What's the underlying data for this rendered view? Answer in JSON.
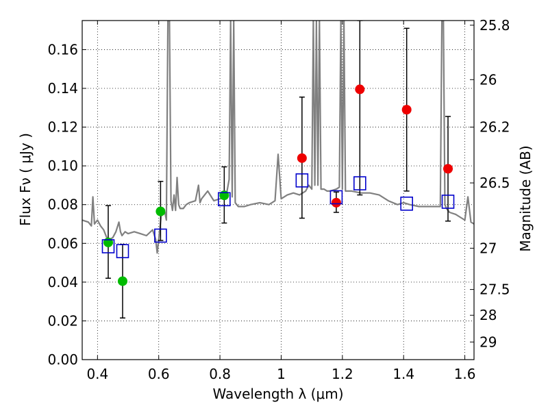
{
  "chart_data": {
    "type": "scatter",
    "xlabel": "Wavelength  λ (μm)",
    "ylabel": "Flux  Fν  ( μJy )",
    "ylabel_right": "Magnitude (AB)",
    "xlim": [
      0.35,
      1.63
    ],
    "ylim": [
      0.0,
      0.175
    ],
    "x_ticks": [
      0.4,
      0.6,
      0.8,
      1.0,
      1.2,
      1.4,
      1.6
    ],
    "x_tick_labels": [
      "0.4",
      "0.6",
      "0.8",
      "1",
      "1.2",
      "1.4",
      "1.6"
    ],
    "y_ticks": [
      0.0,
      0.02,
      0.04,
      0.06,
      0.08,
      0.1,
      0.12,
      0.14,
      0.16
    ],
    "y_tick_labels": [
      "0.00",
      "0.02",
      "0.04",
      "0.06",
      "0.08",
      "0.10",
      "0.12",
      "0.14",
      "0.16"
    ],
    "right_ticks": [
      {
        "label": "25.8",
        "flux": 0.1726
      },
      {
        "label": "26",
        "flux": 0.1445
      },
      {
        "label": "26.2",
        "flux": 0.12
      },
      {
        "label": "26.5",
        "flux": 0.0912
      },
      {
        "label": "27",
        "flux": 0.0575
      },
      {
        "label": "27.5",
        "flux": 0.0362
      },
      {
        "label": "28",
        "flux": 0.0229
      },
      {
        "label": "29",
        "flux": 0.0091
      }
    ],
    "grid": true,
    "colors": {
      "green": "#00bb00",
      "red": "#ee0000",
      "blue_square": "#0000cc",
      "spectrum": "#808080",
      "errorbar": "#000000"
    },
    "series": [
      {
        "marker": "circle",
        "color": "#00bb00",
        "points": [
          {
            "x": 0.435,
            "y": 0.0605
          },
          {
            "x": 0.482,
            "y": 0.0405
          },
          {
            "x": 0.606,
            "y": 0.0765
          },
          {
            "x": 0.814,
            "y": 0.0848
          }
        ]
      },
      {
        "marker": "circle",
        "color": "#ee0000",
        "points": [
          {
            "x": 1.068,
            "y": 0.104
          },
          {
            "x": 1.18,
            "y": 0.081
          },
          {
            "x": 1.257,
            "y": 0.1395
          },
          {
            "x": 1.41,
            "y": 0.129
          },
          {
            "x": 1.545,
            "y": 0.0985
          }
        ]
      },
      {
        "marker": "square-open",
        "color": "#0000cc",
        "points": [
          {
            "x": 0.435,
            "y": 0.0585
          },
          {
            "x": 0.482,
            "y": 0.056
          },
          {
            "x": 0.606,
            "y": 0.064
          },
          {
            "x": 0.814,
            "y": 0.0828
          },
          {
            "x": 1.068,
            "y": 0.0925
          },
          {
            "x": 1.18,
            "y": 0.0838
          },
          {
            "x": 1.257,
            "y": 0.091
          },
          {
            "x": 1.41,
            "y": 0.0805
          },
          {
            "x": 1.545,
            "y": 0.0815
          }
        ]
      }
    ],
    "errorbars": [
      {
        "x": 0.435,
        "lo": 0.042,
        "hi": 0.0795
      },
      {
        "x": 0.482,
        "lo": 0.0215,
        "hi": 0.0595
      },
      {
        "x": 0.606,
        "lo": 0.0615,
        "hi": 0.092
      },
      {
        "x": 0.814,
        "lo": 0.0705,
        "hi": 0.0995
      },
      {
        "x": 1.068,
        "lo": 0.073,
        "hi": 0.1355
      },
      {
        "x": 1.18,
        "lo": 0.076,
        "hi": 0.0865
      },
      {
        "x": 1.257,
        "lo": 0.085,
        "hi": 0.175
      },
      {
        "x": 1.41,
        "lo": 0.087,
        "hi": 0.171
      },
      {
        "x": 1.545,
        "lo": 0.0715,
        "hi": 0.1255
      }
    ],
    "spectrum": {
      "x": [
        0.35,
        0.37,
        0.38,
        0.385,
        0.39,
        0.4,
        0.41,
        0.42,
        0.43,
        0.44,
        0.45,
        0.46,
        0.47,
        0.475,
        0.48,
        0.49,
        0.5,
        0.52,
        0.54,
        0.56,
        0.58,
        0.59,
        0.595,
        0.6,
        0.61,
        0.62,
        0.625,
        0.63,
        0.635,
        0.64,
        0.645,
        0.65,
        0.655,
        0.66,
        0.665,
        0.67,
        0.68,
        0.69,
        0.7,
        0.72,
        0.73,
        0.735,
        0.74,
        0.76,
        0.78,
        0.8,
        0.82,
        0.83,
        0.835,
        0.84,
        0.845,
        0.85,
        0.86,
        0.88,
        0.9,
        0.93,
        0.96,
        0.98,
        0.99,
        1.0,
        1.02,
        1.04,
        1.06,
        1.08,
        1.09,
        1.1,
        1.105,
        1.11,
        1.115,
        1.12,
        1.125,
        1.13,
        1.14,
        1.15,
        1.16,
        1.18,
        1.19,
        1.195,
        1.2,
        1.205,
        1.21,
        1.23,
        1.26,
        1.29,
        1.32,
        1.35,
        1.38,
        1.4,
        1.42,
        1.45,
        1.48,
        1.5,
        1.52,
        1.525,
        1.53,
        1.535,
        1.54,
        1.55,
        1.57,
        1.59,
        1.6,
        1.61,
        1.62,
        1.63
      ],
      "y": [
        0.072,
        0.071,
        0.069,
        0.084,
        0.07,
        0.072,
        0.069,
        0.067,
        0.063,
        0.062,
        0.063,
        0.066,
        0.071,
        0.066,
        0.064,
        0.066,
        0.065,
        0.066,
        0.065,
        0.064,
        0.067,
        0.062,
        0.055,
        0.062,
        0.077,
        0.076,
        0.072,
        0.175,
        0.175,
        0.082,
        0.077,
        0.085,
        0.077,
        0.094,
        0.08,
        0.078,
        0.078,
        0.08,
        0.081,
        0.082,
        0.09,
        0.081,
        0.083,
        0.087,
        0.082,
        0.083,
        0.084,
        0.093,
        0.175,
        0.084,
        0.175,
        0.081,
        0.079,
        0.079,
        0.08,
        0.081,
        0.08,
        0.082,
        0.106,
        0.083,
        0.085,
        0.086,
        0.085,
        0.087,
        0.09,
        0.088,
        0.175,
        0.09,
        0.175,
        0.09,
        0.175,
        0.088,
        0.088,
        0.087,
        0.087,
        0.088,
        0.089,
        0.175,
        0.088,
        0.175,
        0.087,
        0.087,
        0.086,
        0.086,
        0.085,
        0.082,
        0.08,
        0.081,
        0.08,
        0.079,
        0.079,
        0.079,
        0.079,
        0.175,
        0.175,
        0.08,
        0.078,
        0.076,
        0.075,
        0.073,
        0.072,
        0.084,
        0.071,
        0.07
      ]
    }
  }
}
